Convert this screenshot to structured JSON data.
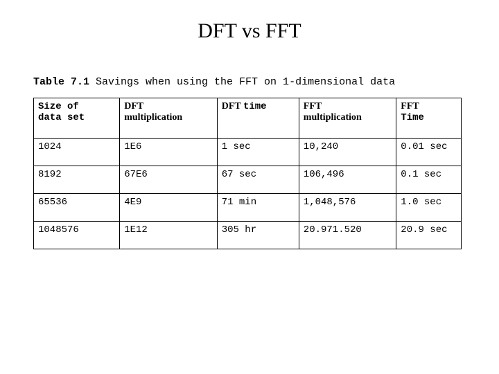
{
  "title": "DFT vs FFT",
  "caption_label": "Table 7.1",
  "caption_text": " Savings when using the FFT on 1-dimensional data",
  "table": {
    "headers": {
      "h0_a": "Size  of",
      "h0_b": "data set",
      "h1_a": "DFT",
      "h1_b": "multiplication",
      "h2_a": "DFT ",
      "h2_b": "time",
      "h3_a": "FFT",
      "h3_b": "multiplication",
      "h4_a": "FFT",
      "h4_b": "Time"
    },
    "rows": [
      {
        "c0": "1024",
        "c1": "1E6",
        "c2": "1 sec",
        "c3": "10,240",
        "c4": "0.01 sec"
      },
      {
        "c0": "8192",
        "c1": "67E6",
        "c2": "67 sec",
        "c3": "106,496",
        "c4": "0.1 sec"
      },
      {
        "c0": "65536",
        "c1": "4E9",
        "c2": "71 min",
        "c3": "1,048,576",
        "c4": "1.0 sec"
      },
      {
        "c0": "1048576",
        "c1": "1E12",
        "c2": "305 hr",
        "c3": "20.971.520",
        "c4": "20.9 sec"
      }
    ]
  }
}
